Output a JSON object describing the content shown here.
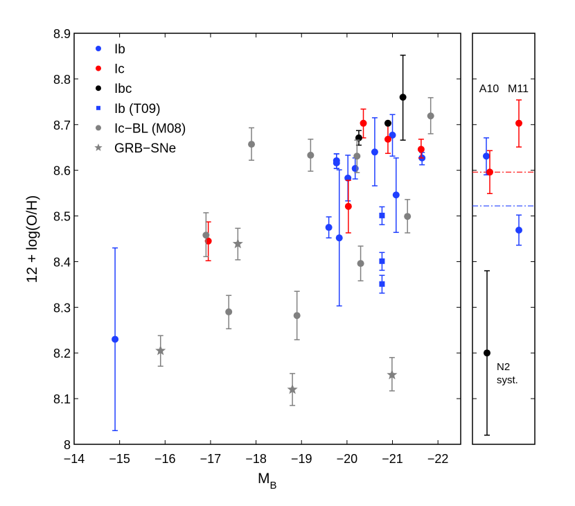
{
  "chart_data": {
    "type": "scatter",
    "title": "",
    "xlabel": "M",
    "xlabel_sub": "B",
    "ylabel": "12 + log(O/H)",
    "xlim": [
      -14,
      -22.5
    ],
    "ylim": [
      8.0,
      8.9
    ],
    "grid": false,
    "legend_position": "top-left",
    "x_ticks": [
      -14,
      -15,
      -16,
      -17,
      -18,
      -19,
      -20,
      -21,
      -22
    ],
    "x_tick_labels": [
      "−14",
      "−15",
      "−16",
      "−17",
      "−18",
      "−19",
      "−20",
      "−21",
      "−22"
    ],
    "y_ticks": [
      8,
      8.1,
      8.2,
      8.3,
      8.4,
      8.5,
      8.6,
      8.7,
      8.8,
      8.9
    ],
    "y_tick_labels": [
      "8",
      "8.1",
      "8.2",
      "8.3",
      "8.4",
      "8.5",
      "8.6",
      "8.7",
      "8.8",
      "8.9"
    ],
    "series": [
      {
        "name": "Ib",
        "color": "#1f3fff",
        "marker": "circle",
        "points": [
          {
            "x": -14.9,
            "y": 8.23,
            "lo": 8.03,
            "hi": 8.43
          },
          {
            "x": -19.6,
            "y": 8.475,
            "lo": 8.452,
            "hi": 8.498
          },
          {
            "x": -19.77,
            "y": 8.621,
            "lo": 8.604,
            "hi": 8.636
          },
          {
            "x": -19.77,
            "y": 8.616,
            "lo": 8.604,
            "hi": 8.636
          },
          {
            "x": -19.83,
            "y": 8.452,
            "lo": 8.303,
            "hi": 8.601
          },
          {
            "x": -20.02,
            "y": 8.583,
            "lo": 8.533,
            "hi": 8.633
          },
          {
            "x": -20.18,
            "y": 8.604,
            "lo": 8.581,
            "hi": 8.627
          },
          {
            "x": -20.61,
            "y": 8.64,
            "lo": 8.566,
            "hi": 8.715
          },
          {
            "x": -21.0,
            "y": 8.677,
            "lo": 8.631,
            "hi": 8.722
          },
          {
            "x": -21.08,
            "y": 8.546,
            "lo": 8.464,
            "hi": 8.627
          },
          {
            "x": -21.65,
            "y": 8.627,
            "lo": 8.612,
            "hi": 8.639
          }
        ]
      },
      {
        "name": "Ic",
        "color": "#ff0000",
        "marker": "circle",
        "points": [
          {
            "x": -16.95,
            "y": 8.445,
            "lo": 8.402,
            "hi": 8.487
          },
          {
            "x": -20.03,
            "y": 8.521,
            "lo": 8.463,
            "hi": 8.578
          },
          {
            "x": -20.36,
            "y": 8.703,
            "lo": 8.671,
            "hi": 8.734
          },
          {
            "x": -20.9,
            "y": 8.668,
            "lo": 8.637,
            "hi": 8.703
          },
          {
            "x": -21.63,
            "y": 8.646,
            "lo": 8.627,
            "hi": 8.668
          }
        ]
      },
      {
        "name": "Ibc",
        "color": "#000000",
        "marker": "circle",
        "points": [
          {
            "x": -20.26,
            "y": 8.671,
            "lo": 8.655,
            "hi": 8.687
          },
          {
            "x": -20.9,
            "y": 8.703,
            "lo": null,
            "hi": null
          },
          {
            "x": -21.23,
            "y": 8.76,
            "lo": 8.666,
            "hi": 8.852
          }
        ]
      },
      {
        "name": "Ib (T09)",
        "color": "#1f3fff",
        "marker": "square",
        "points": [
          {
            "x": -20.77,
            "y": 8.501,
            "lo": 8.481,
            "hi": 8.52
          },
          {
            "x": -20.77,
            "y": 8.401,
            "lo": 8.381,
            "hi": 8.42
          },
          {
            "x": -20.77,
            "y": 8.351,
            "lo": 8.331,
            "hi": 8.37
          }
        ]
      },
      {
        "name": "Ic−BL (M08)",
        "color": "#808080",
        "marker": "circle",
        "points": [
          {
            "x": -16.9,
            "y": 8.458,
            "lo": 8.411,
            "hi": 8.507
          },
          {
            "x": -17.4,
            "y": 8.29,
            "lo": 8.253,
            "hi": 8.326
          },
          {
            "x": -17.9,
            "y": 8.657,
            "lo": 8.622,
            "hi": 8.693
          },
          {
            "x": -18.9,
            "y": 8.282,
            "lo": 8.229,
            "hi": 8.335
          },
          {
            "x": -19.2,
            "y": 8.633,
            "lo": 8.598,
            "hi": 8.668
          },
          {
            "x": -20.22,
            "y": 8.631,
            "lo": 8.595,
            "hi": 8.666
          },
          {
            "x": -20.3,
            "y": 8.396,
            "lo": 8.358,
            "hi": 8.434
          },
          {
            "x": -21.33,
            "y": 8.499,
            "lo": 8.463,
            "hi": 8.536
          },
          {
            "x": -21.84,
            "y": 8.719,
            "lo": 8.68,
            "hi": 8.759
          }
        ]
      },
      {
        "name": "GRB−SNe",
        "color": "#808080",
        "marker": "star",
        "points": [
          {
            "x": -15.9,
            "y": 8.205,
            "lo": 8.171,
            "hi": 8.238
          },
          {
            "x": -17.6,
            "y": 8.439,
            "lo": 8.404,
            "hi": 8.473
          },
          {
            "x": -18.8,
            "y": 8.12,
            "lo": 8.085,
            "hi": 8.155
          },
          {
            "x": -20.99,
            "y": 8.152,
            "lo": 8.117,
            "hi": 8.19
          }
        ]
      }
    ],
    "side_panel": {
      "column_labels": [
        "A10",
        "M11"
      ],
      "systematic_label_line1": "N2",
      "systematic_label_line2": "syst.",
      "points": [
        {
          "column": "A10",
          "series": "Ib",
          "color": "#1f3fff",
          "y": 8.631,
          "lo": 8.59,
          "hi": 8.671
        },
        {
          "column": "A10",
          "series": "Ic",
          "color": "#ff0000",
          "y": 8.596,
          "lo": 8.549,
          "hi": 8.643
        },
        {
          "column": "M11",
          "series": "Ic",
          "color": "#ff0000",
          "y": 8.703,
          "lo": 8.651,
          "hi": 8.754
        },
        {
          "column": "M11",
          "series": "Ib",
          "color": "#1f3fff",
          "y": 8.469,
          "lo": 8.436,
          "hi": 8.502
        },
        {
          "column": "N2",
          "series": "systematic",
          "color": "#000000",
          "y": 8.2,
          "lo": 8.02,
          "hi": 8.38
        }
      ],
      "reference_lines": [
        {
          "series": "Ic",
          "color": "#ff0000",
          "y": 8.596,
          "style": "dash-dot"
        },
        {
          "series": "Ib",
          "color": "#1f3fff",
          "y": 8.522,
          "style": "dash-dot"
        }
      ]
    }
  }
}
